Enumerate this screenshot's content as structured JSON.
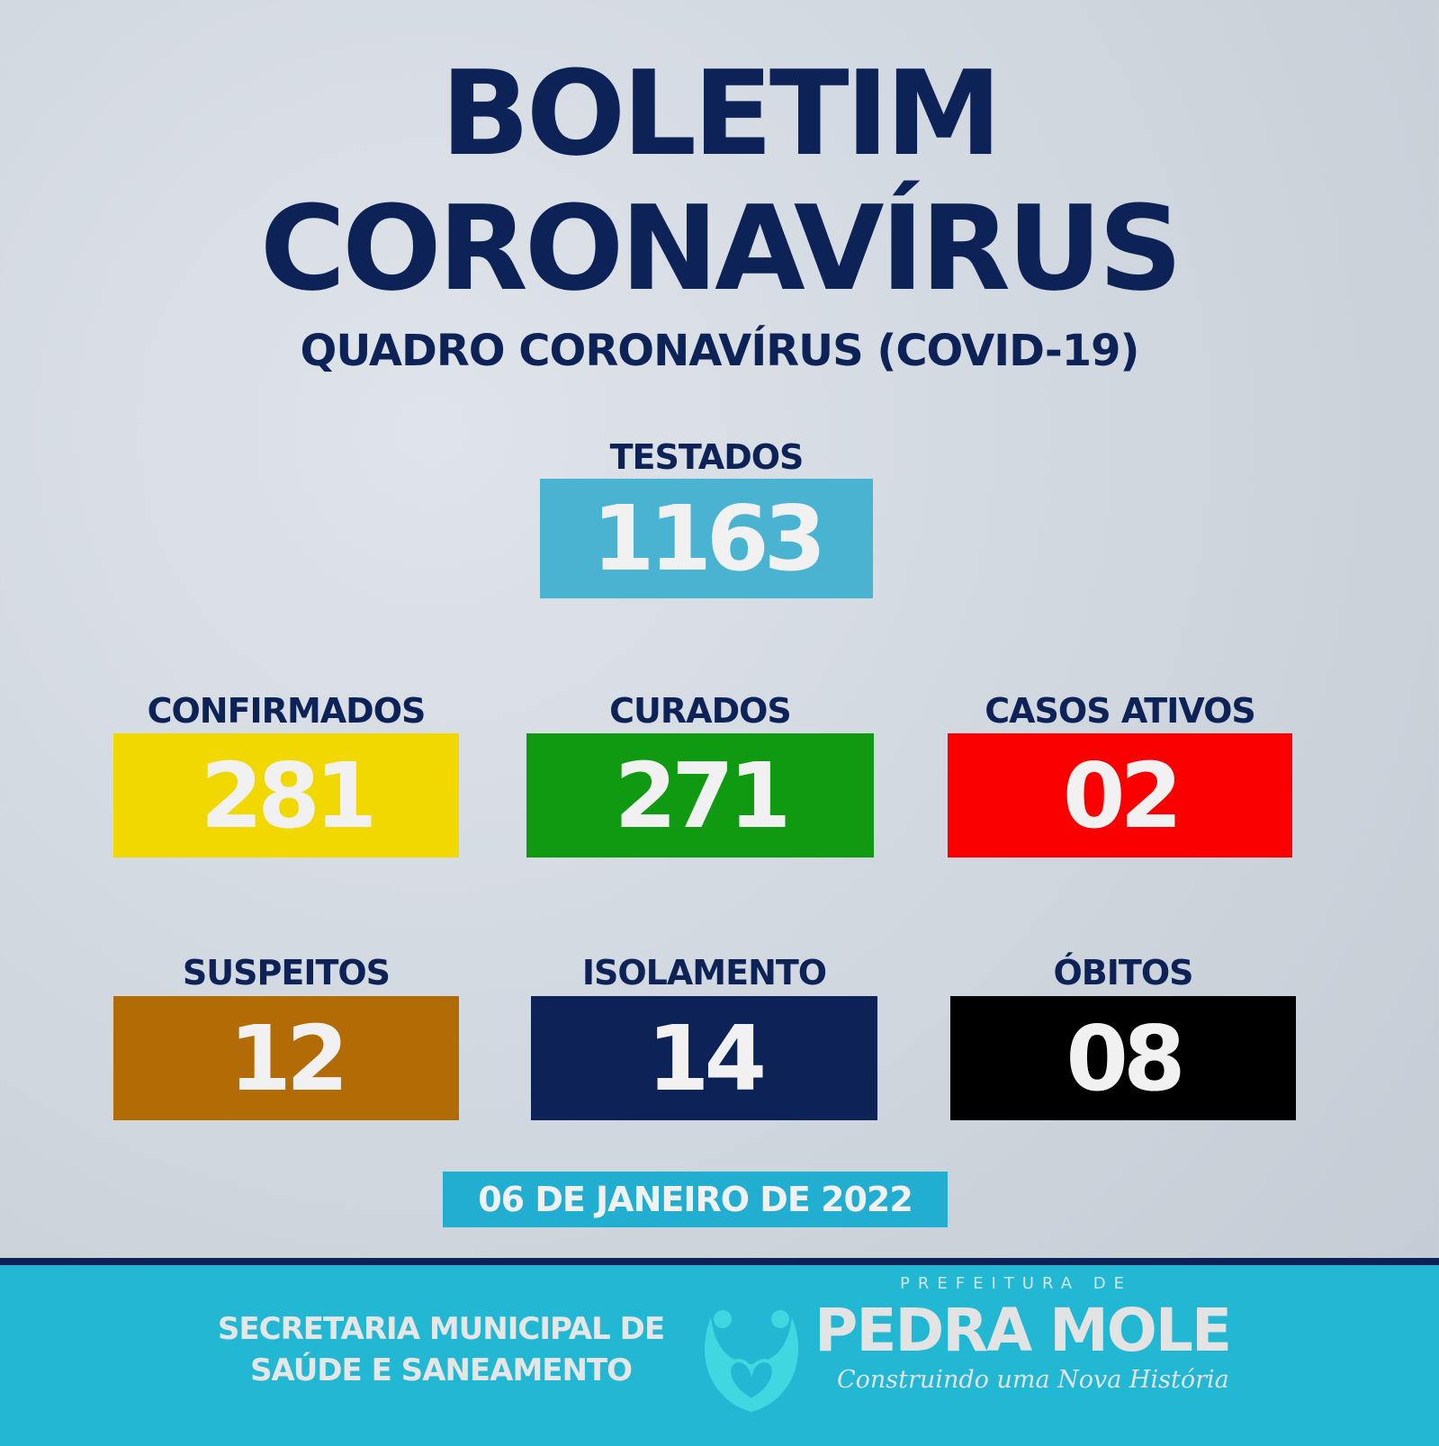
{
  "header": {
    "title_line1": "BOLETIM",
    "title_line2": "CORONAVÍRUS",
    "subtitle": "QUADRO CORONAVÍRUS (COVID-19)"
  },
  "stats": {
    "testados": {
      "label": "TESTADOS",
      "value": "1163",
      "color": "#4ab3d1"
    },
    "confirmados": {
      "label": "CONFIRMADOS",
      "value": "281",
      "color": "#f0d800"
    },
    "curados": {
      "label": "CURADOS",
      "value": "271",
      "color": "#0f9a12"
    },
    "casos_ativos": {
      "label": "CASOS ATIVOS",
      "value": "02",
      "color": "#fa0000"
    },
    "suspeitos": {
      "label": "SUSPEITOS",
      "value": "12",
      "color": "#b36b05"
    },
    "isolamento": {
      "label": "ISOLAMENTO",
      "value": "14",
      "color": "#0d2257"
    },
    "obitos": {
      "label": "ÓBITOS",
      "value": "08",
      "color": "#000000"
    }
  },
  "date": "06 DE JANEIRO DE 2022",
  "footer": {
    "secretaria_line1": "SECRETARIA MUNICIPAL DE",
    "secretaria_line2": "SAÚDE E SANEAMENTO",
    "logo_top": "PREFEITURA DE",
    "logo_name": "PEDRA MOLE",
    "logo_slogan": "Construindo uma Nova História",
    "logo_icon": "heart-people-icon"
  }
}
